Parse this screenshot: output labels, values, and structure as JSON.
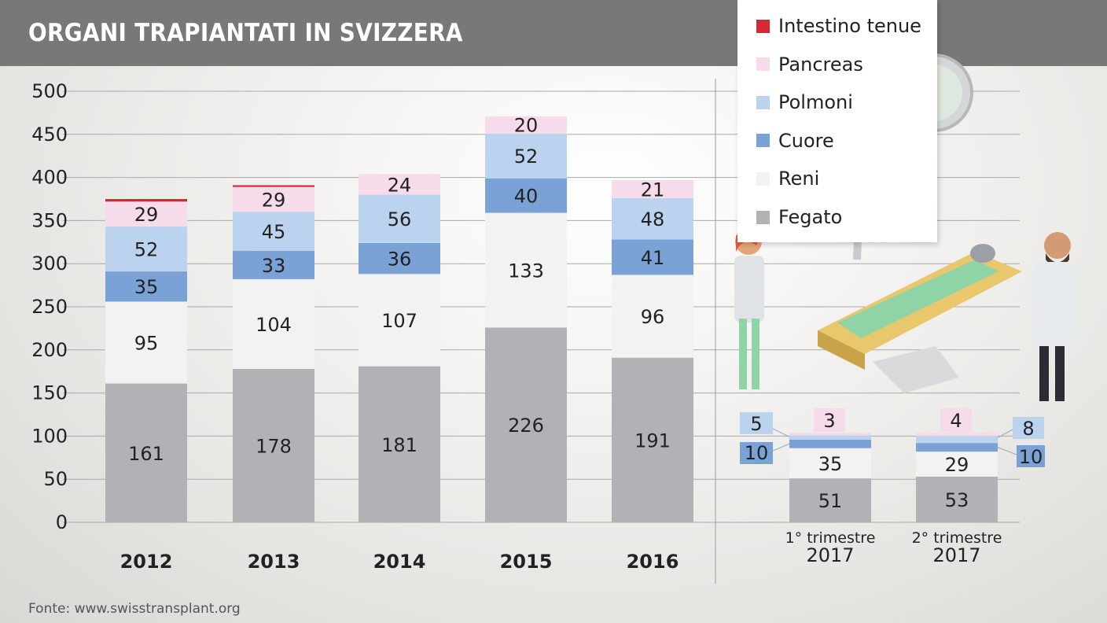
{
  "title": "ORGANI TRAPIANTATI IN SVIZZERA",
  "source": "Fonte: www.swisstransplant.org",
  "chart_data": {
    "type": "bar",
    "stacked": true,
    "categories": [
      "2012",
      "2013",
      "2014",
      "2015",
      "2016"
    ],
    "quarter_categories": [
      {
        "line1": "1° trimestre",
        "line2": "2017"
      },
      {
        "line1": "2° trimestre",
        "line2": "2017"
      }
    ],
    "ylim": [
      0,
      500
    ],
    "yticks": [
      0,
      50,
      100,
      150,
      200,
      250,
      300,
      350,
      400,
      450,
      500
    ],
    "grid": true,
    "legend_position": "top-right",
    "series": [
      {
        "name": "Fegato",
        "color": "#b1b2b5",
        "values": [
          161,
          178,
          181,
          226,
          191
        ],
        "quarter_values": [
          51,
          53
        ]
      },
      {
        "name": "Reni",
        "color": "#f2f2f3",
        "values": [
          95,
          104,
          107,
          133,
          96
        ],
        "quarter_values": [
          35,
          29
        ]
      },
      {
        "name": "Cuore",
        "color": "#7ba2d6",
        "values": [
          35,
          33,
          36,
          40,
          41
        ],
        "quarter_values": [
          10,
          10
        ]
      },
      {
        "name": "Polmoni",
        "color": "#bcd3ef",
        "values": [
          52,
          45,
          56,
          52,
          48
        ],
        "quarter_values": [
          5,
          8
        ]
      },
      {
        "name": "Pancreas",
        "color": "#f6dcea",
        "values": [
          29,
          29,
          24,
          20,
          21
        ],
        "quarter_values": [
          3,
          4
        ]
      },
      {
        "name": "Intestino tenue",
        "color": "#d62936",
        "values": [
          3,
          2,
          0,
          0,
          0
        ],
        "quarter_values": [
          0,
          0
        ]
      }
    ]
  }
}
